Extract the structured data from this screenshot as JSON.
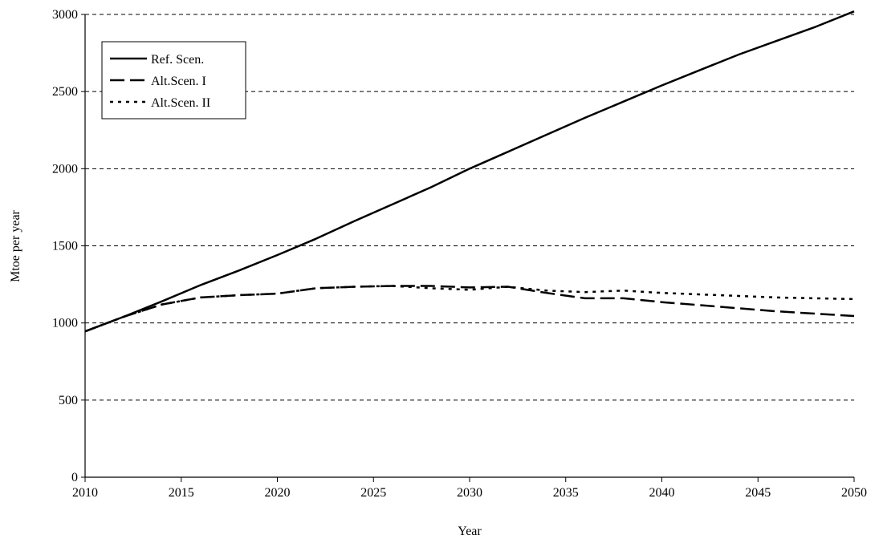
{
  "chart_data": {
    "type": "line",
    "title": "",
    "xlabel": "Year",
    "ylabel": "Mtoe per year",
    "xlim": [
      2010,
      2050
    ],
    "ylim": [
      0,
      3000
    ],
    "xticks": [
      2010,
      2015,
      2020,
      2025,
      2030,
      2035,
      2040,
      2045,
      2050
    ],
    "yticks": [
      0,
      500,
      1000,
      1500,
      2000,
      2500,
      3000
    ],
    "grid": "horizontal-dashed",
    "legend_position": "top-left",
    "series": [
      {
        "name": "Ref. Scen.",
        "style": "solid",
        "color": "#000000",
        "x": [
          2010,
          2012,
          2014,
          2016,
          2018,
          2020,
          2022,
          2024,
          2026,
          2028,
          2030,
          2032,
          2034,
          2036,
          2038,
          2040,
          2042,
          2044,
          2046,
          2048,
          2050
        ],
        "y": [
          945,
          1040,
          1140,
          1245,
          1340,
          1440,
          1545,
          1660,
          1770,
          1880,
          2000,
          2110,
          2220,
          2330,
          2435,
          2540,
          2640,
          2740,
          2830,
          2920,
          3020
        ]
      },
      {
        "name": "Alt.Scen. I",
        "style": "dashed",
        "color": "#000000",
        "x": [
          2010,
          2012,
          2014,
          2016,
          2018,
          2020,
          2022,
          2024,
          2026,
          2028,
          2030,
          2032,
          2034,
          2036,
          2038,
          2040,
          2042,
          2044,
          2046,
          2048,
          2050
        ],
        "y": [
          945,
          1040,
          1120,
          1165,
          1180,
          1190,
          1225,
          1235,
          1240,
          1240,
          1230,
          1235,
          1195,
          1160,
          1160,
          1135,
          1115,
          1095,
          1075,
          1060,
          1045
        ]
      },
      {
        "name": "Alt.Scen. II",
        "style": "dotted",
        "color": "#000000",
        "x": [
          2010,
          2012,
          2014,
          2016,
          2018,
          2020,
          2022,
          2024,
          2026,
          2028,
          2030,
          2032,
          2034,
          2036,
          2038,
          2040,
          2042,
          2044,
          2046,
          2048,
          2050
        ],
        "y": [
          945,
          1040,
          1120,
          1165,
          1180,
          1190,
          1225,
          1235,
          1240,
          1225,
          1215,
          1235,
          1210,
          1200,
          1210,
          1195,
          1185,
          1175,
          1165,
          1160,
          1155
        ]
      }
    ]
  }
}
